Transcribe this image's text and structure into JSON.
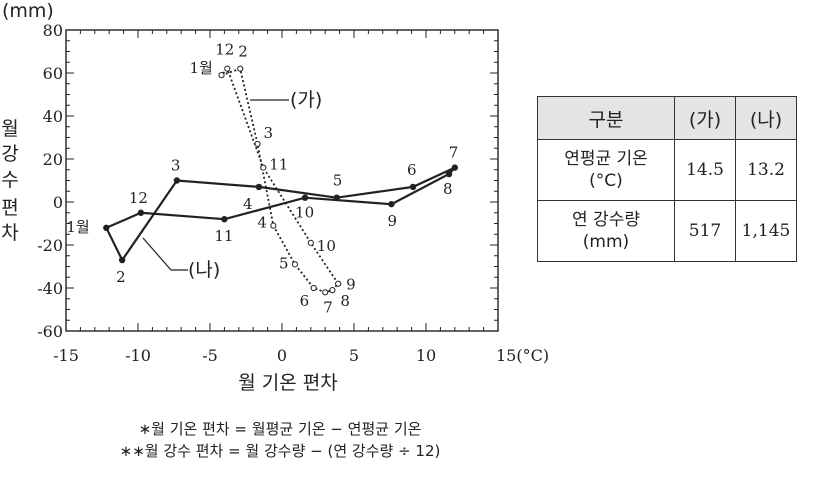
{
  "chart_data": {
    "type": "scatter",
    "title": "",
    "unit_y": "(mm)",
    "unit_x": "15(°C)",
    "xlabel": "월 기온 편차",
    "ylabel": [
      "월",
      "강",
      "수",
      "편",
      "차"
    ],
    "xlim": [
      -15,
      15
    ],
    "ylim": [
      -60,
      80
    ],
    "x_ticks": [
      "-15",
      "-10",
      "-5",
      "0",
      "5",
      "10"
    ],
    "y_ticks": [
      "80",
      "60",
      "40",
      "20",
      "0",
      "-20",
      "-40",
      "-60"
    ],
    "series": [
      {
        "name": "(가)",
        "style": "dotted",
        "marker": "open-circle",
        "points": [
          {
            "label": "1월",
            "x": -4.2,
            "y": 59
          },
          {
            "label": "2",
            "x": -2.9,
            "y": 62
          },
          {
            "label": "3",
            "x": -1.7,
            "y": 27
          },
          {
            "label": "4",
            "x": -0.6,
            "y": -11
          },
          {
            "label": "5",
            "x": 0.9,
            "y": -29
          },
          {
            "label": "6",
            "x": 2.2,
            "y": -40
          },
          {
            "label": "7",
            "x": 3.0,
            "y": -42
          },
          {
            "label": "8",
            "x": 3.5,
            "y": -41
          },
          {
            "label": "9",
            "x": 3.9,
            "y": -38
          },
          {
            "label": "10",
            "x": 2.0,
            "y": -19
          },
          {
            "label": "11",
            "x": -1.3,
            "y": 16
          },
          {
            "label": "12",
            "x": -3.8,
            "y": 62
          }
        ]
      },
      {
        "name": "(나)",
        "style": "solid",
        "marker": "filled-circle",
        "points": [
          {
            "label": "1월",
            "x": -12.2,
            "y": -12
          },
          {
            "label": "2",
            "x": -11.1,
            "y": -27
          },
          {
            "label": "3",
            "x": -7.3,
            "y": 10
          },
          {
            "label": "4",
            "x": -1.6,
            "y": 7
          },
          {
            "label": "5",
            "x": 3.8,
            "y": 2
          },
          {
            "label": "6",
            "x": 9.1,
            "y": 7
          },
          {
            "label": "7",
            "x": 12.0,
            "y": 16
          },
          {
            "label": "8",
            "x": 11.6,
            "y": 13
          },
          {
            "label": "9",
            "x": 7.6,
            "y": -1
          },
          {
            "label": "10",
            "x": 1.6,
            "y": 2
          },
          {
            "label": "11",
            "x": -4.0,
            "y": -8
          },
          {
            "label": "12",
            "x": -9.8,
            "y": -5
          }
        ]
      }
    ],
    "grid": false
  },
  "table": {
    "headers": [
      "구분",
      "(가)",
      "(나)"
    ],
    "rows": [
      {
        "label": "연평균 기온",
        "sublabel": "(°C)",
        "values": [
          "14.5",
          "13.2"
        ]
      },
      {
        "label": "연 강수량",
        "sublabel": "(mm)",
        "values": [
          "517",
          "1,145"
        ]
      }
    ]
  },
  "notes": [
    "∗월 기온 편차 = 월평균 기온 − 연평균 기온",
    "∗∗월 강수 편차 = 월 강수량 − (연 강수량 ÷ 12)"
  ]
}
